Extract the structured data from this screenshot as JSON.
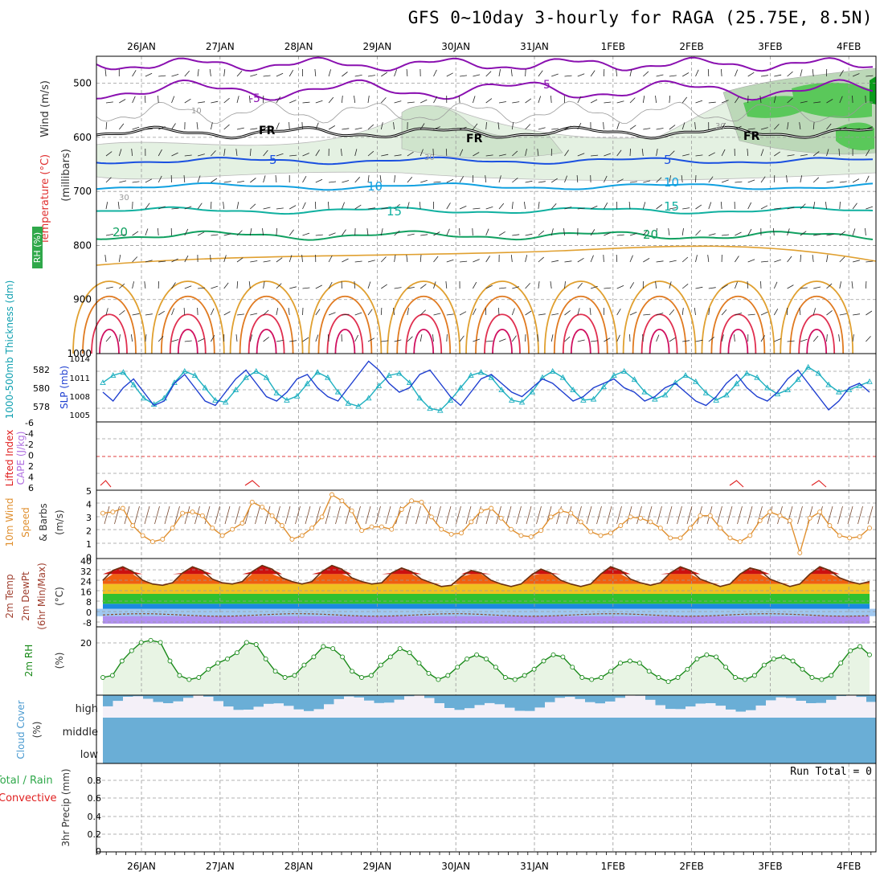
{
  "title": "GFS 0~10day 3-hourly for RAGA (25.75E, 8.5N)",
  "dates": [
    "26JAN",
    "27JAN",
    "28JAN",
    "29JAN",
    "30JAN",
    "31JAN",
    "1FEB",
    "2FEB",
    "3FEB",
    "4FEB"
  ],
  "run_total_text": "Run Total = 0",
  "colors": {
    "grid": "#9a9a9a",
    "rh_green": "#2fa84a",
    "slp": "#1f3fd0",
    "thick": "#1fb0c0",
    "cape": "#b070e0",
    "li": "#e02020",
    "wind": "#e09030",
    "dew": "#8b4a2a",
    "rh2m": "#1a8a1a",
    "cloud": "#6aaed6",
    "cloud_bg": "#f4f0f8"
  },
  "panels": {
    "upper": {
      "ylabel_wind": "Wind (m/s)",
      "ylabel_temp": "Temperature (°C)",
      "ylabel_mb": "(millibars)",
      "rh_key": "RH (%)",
      "pressure_ticks": [
        "500",
        "600",
        "700",
        "800",
        "900",
        "1000"
      ],
      "contour_labels": [
        {
          "text": "-5",
          "color": "#8a10b0"
        },
        {
          "text": "5",
          "color": "#8a10b0"
        },
        {
          "text": "FR",
          "color": "#000"
        },
        {
          "text": "FR",
          "color": "#000"
        },
        {
          "text": "FR",
          "color": "#000"
        },
        {
          "text": "5",
          "color": "#1a50e0"
        },
        {
          "text": "5",
          "color": "#1a50e0"
        },
        {
          "text": "10",
          "color": "#10a0e0"
        },
        {
          "text": "10",
          "color": "#10a0e0"
        },
        {
          "text": "15",
          "color": "#10b0a0"
        },
        {
          "text": "15",
          "color": "#10b0a0"
        },
        {
          "text": "20",
          "color": "#10a060"
        },
        {
          "text": "20",
          "color": "#10a060"
        },
        {
          "text": "10",
          "color": "#999"
        },
        {
          "text": "30",
          "color": "#999"
        },
        {
          "text": "30",
          "color": "#999"
        },
        {
          "text": "30",
          "color": "#999"
        }
      ]
    },
    "slp": {
      "ylabel_left": "1000-500mb Thickness (dm)",
      "ylabel_right": "SLP (mb)",
      "left_ticks": [
        "582",
        "580",
        "578"
      ],
      "right_ticks": [
        "1014",
        "1011",
        "1008",
        "1005"
      ]
    },
    "cape": {
      "ylabel_left": "Lifted Index",
      "ylabel_right": "CAPE (J/kg)",
      "ticks": [
        "-6",
        "-4",
        "-2",
        "0",
        "2",
        "4",
        "6"
      ]
    },
    "wind10m": {
      "ylabel": "10m Wind",
      "ylabel2": "Speed",
      "ylabel3": "& Barbs",
      "unit": "(m/s)",
      "ticks": [
        "5",
        "4",
        "3",
        "2",
        "1",
        "0"
      ]
    },
    "temp2m": {
      "ylabel": "2m Temp",
      "ylabel2": "2m DewPt",
      "ylabel3": "(6hr Min/Max)",
      "unit": "(°C)",
      "ticks": [
        "40",
        "32",
        "24",
        "16",
        "8",
        "0",
        "-8"
      ]
    },
    "rh2m": {
      "ylabel": "2m RH",
      "unit": "(%)",
      "ticks": [
        "20"
      ]
    },
    "cloud": {
      "ylabel": "Cloud Cover",
      "unit": "(%)",
      "levels": [
        "high",
        "middle",
        "low"
      ]
    },
    "precip": {
      "ylabel": "3hr Precip (mm)",
      "ylabel_total": "Total / Rain",
      "ylabel_conv": "Convective",
      "ticks": [
        "0.8",
        "0.6",
        "0.4",
        "0.2",
        "0"
      ]
    }
  },
  "chart_data": [
    {
      "type": "line",
      "name": "slp",
      "ylabel": "SLP (mb)",
      "ylim": [
        1002,
        1016
      ],
      "values": [
        1008,
        1006,
        1009,
        1011,
        1008,
        1005,
        1006,
        1010,
        1012,
        1009,
        1006,
        1005,
        1008,
        1011,
        1013,
        1010,
        1007,
        1006,
        1008,
        1011,
        1012,
        1009,
        1007,
        1006,
        1009,
        1012,
        1015,
        1013,
        1010,
        1008,
        1009,
        1012,
        1013,
        1010,
        1007,
        1005,
        1008,
        1011,
        1012,
        1010,
        1008,
        1007,
        1009,
        1011,
        1010,
        1008,
        1006,
        1007,
        1009,
        1010,
        1011,
        1009,
        1008,
        1006,
        1007,
        1009,
        1010,
        1008,
        1006,
        1005,
        1007,
        1010,
        1012,
        1009,
        1007,
        1006,
        1008,
        1011,
        1013,
        1010,
        1007,
        1004,
        1006,
        1009,
        1010,
        1008
      ]
    },
    {
      "type": "line",
      "name": "thickness",
      "ylabel": "1000-500mb Thickness (dm)",
      "ylim": [
        577,
        583
      ],
      "values": [
        580.5,
        581.2,
        581.5,
        580.3,
        579.0,
        578.4,
        579.0,
        580.5,
        581.6,
        581.2,
        580.0,
        578.8,
        578.6,
        579.8,
        581.0,
        581.6,
        581.0,
        579.5,
        578.8,
        579.2,
        580.4,
        581.5,
        581.0,
        579.6,
        578.5,
        578.2,
        579.0,
        580.2,
        581.2,
        581.4,
        580.5,
        579.0,
        578.0,
        577.8,
        578.8,
        580.0,
        581.2,
        581.5,
        581.0,
        579.8,
        578.8,
        578.6,
        579.6,
        581.0,
        581.6,
        581.0,
        579.8,
        578.8,
        578.9,
        580.1,
        581.2,
        581.6,
        580.8,
        579.6,
        578.9,
        579.3,
        580.5,
        581.2,
        580.6,
        579.5,
        578.8,
        579.3,
        580.4,
        581.4,
        581.0,
        580.0,
        579.4,
        579.8,
        580.8,
        582.0,
        581.4,
        580.3,
        579.6,
        579.8,
        580.2,
        580.6
      ]
    },
    {
      "type": "line",
      "name": "10m wind speed",
      "ylabel": "(m/s)",
      "ylim": [
        0,
        5
      ],
      "values": [
        3.4,
        3.5,
        3.8,
        2.4,
        1.6,
        1.1,
        1.3,
        2.2,
        3.4,
        3.5,
        3.2,
        2.2,
        1.6,
        2.1,
        2.6,
        4.3,
        3.9,
        3.2,
        2.4,
        1.3,
        1.6,
        2.2,
        3.1,
        4.9,
        4.4,
        3.6,
        2.0,
        2.3,
        2.3,
        2.1,
        3.7,
        4.4,
        4.3,
        3.1,
        2.1,
        1.7,
        1.8,
        2.7,
        3.6,
        3.8,
        3.0,
        2.1,
        1.6,
        1.5,
        2.0,
        3.1,
        3.6,
        3.4,
        2.7,
        1.9,
        1.6,
        1.8,
        2.4,
        3.1,
        3.0,
        2.7,
        2.2,
        1.4,
        1.4,
        2.2,
        3.2,
        3.2,
        2.2,
        1.4,
        1.1,
        1.6,
        2.8,
        3.5,
        3.2,
        2.8,
        0.2,
        3.0,
        3.5,
        2.4,
        1.6,
        1.4,
        1.5,
        2.2
      ]
    },
    {
      "type": "area",
      "name": "2m temp",
      "ylabel": "(°C)",
      "ylim": [
        -8,
        42
      ],
      "values": [
        27,
        35,
        38,
        34,
        27,
        24,
        23,
        25,
        33,
        38,
        35,
        28,
        25,
        24,
        26,
        34,
        39,
        36,
        29,
        26,
        24,
        26,
        34,
        39,
        36,
        29,
        26,
        24,
        25,
        33,
        37,
        34,
        28,
        25,
        22,
        23,
        30,
        35,
        33,
        27,
        24,
        22,
        24,
        31,
        36,
        33,
        27,
        24,
        22,
        24,
        32,
        38,
        35,
        28,
        25,
        23,
        25,
        33,
        38,
        35,
        28,
        25,
        22,
        24,
        32,
        37,
        35,
        28,
        25,
        22,
        24,
        32,
        38,
        35,
        29,
        26,
        24,
        26
      ]
    },
    {
      "type": "line",
      "name": "2m RH",
      "ylabel": "(%)",
      "ylim": [
        0,
        30
      ],
      "values": [
        7,
        8,
        15,
        20,
        24,
        25,
        24,
        15,
        8,
        6,
        7,
        11,
        14,
        16,
        19,
        24,
        23,
        16,
        10,
        7,
        8,
        13,
        17,
        22,
        21,
        17,
        10,
        7,
        8,
        13,
        17,
        21,
        19,
        14,
        9,
        6,
        8,
        12,
        16,
        18,
        16,
        12,
        7,
        6,
        8,
        11,
        15,
        18,
        17,
        12,
        7,
        6,
        7,
        10,
        14,
        15,
        14,
        10,
        7,
        5,
        7,
        11,
        16,
        18,
        17,
        12,
        7,
        6,
        8,
        13,
        16,
        17,
        15,
        11,
        7,
        6,
        8,
        14,
        20,
        22,
        18
      ]
    },
    {
      "type": "bar",
      "name": "3hr precip",
      "ylabel": "3hr Precip (mm)",
      "ylim": [
        0,
        0.9
      ],
      "values": [
        0
      ]
    }
  ]
}
